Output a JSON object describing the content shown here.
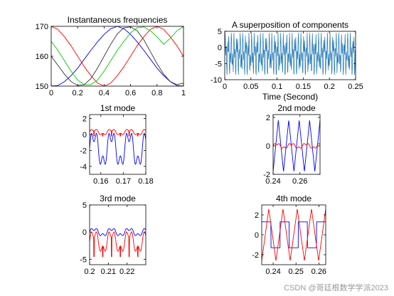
{
  "watermark": "CSDN @哥廷根数学学派2023",
  "chart_data": [
    {
      "type": "line",
      "title": "Instantaneous frequencies",
      "xlabel": "",
      "ylabel": "",
      "xlim": [
        0,
        1
      ],
      "ylim": [
        150,
        170
      ],
      "xticks": [
        0,
        0.2,
        0.4,
        0.6,
        0.8,
        1
      ],
      "xticklabels": [
        "0",
        "0.2",
        "0.4",
        "0.6",
        "0.8",
        "1"
      ],
      "yticks": [
        150,
        160,
        170
      ],
      "yticklabels": [
        "150",
        "160",
        "170"
      ],
      "series": [
        {
          "color": "#0000ff",
          "x": [
            0,
            0.05,
            0.1,
            0.15,
            0.2,
            0.25,
            0.3,
            0.35,
            0.4,
            0.45,
            0.5,
            0.55,
            0.6,
            0.65,
            0.7,
            0.75,
            0.8,
            0.85,
            0.9,
            0.95,
            1
          ],
          "y": [
            150,
            150.2,
            151.5,
            153.5,
            156,
            159,
            162,
            164.8,
            167.3,
            169.2,
            170,
            169.2,
            167.3,
            164.8,
            162,
            159,
            156,
            153.5,
            151.5,
            150.2,
            150
          ]
        },
        {
          "color": "#ff0000",
          "x": [
            0,
            0.05,
            0.1,
            0.15,
            0.2,
            0.25,
            0.3,
            0.35,
            0.4,
            0.45,
            0.5,
            0.55,
            0.6,
            0.65,
            0.7,
            0.75,
            0.8,
            0.85,
            0.9,
            0.95,
            1
          ],
          "y": [
            170,
            169,
            166.5,
            163.5,
            160,
            156.5,
            153.5,
            151,
            150,
            151,
            153.5,
            156.5,
            160,
            163.5,
            166.5,
            169,
            170,
            169,
            166.5,
            163.5,
            160
          ]
        },
        {
          "color": "#00cc00",
          "x": [
            0,
            0.05,
            0.1,
            0.15,
            0.2,
            0.25,
            0.3,
            0.35,
            0.4,
            0.45,
            0.5,
            0.55,
            0.6,
            0.65,
            0.7,
            0.75,
            0.8,
            0.85,
            0.9,
            0.95,
            1
          ],
          "y": [
            165,
            162,
            158.5,
            155,
            152,
            150.5,
            150.5,
            152,
            155,
            158.5,
            162,
            165,
            167.8,
            169.5,
            169.8,
            168.5,
            166.5,
            164,
            166,
            168.5,
            170
          ]
        },
        {
          "color": "#333333",
          "x": [
            0,
            0.05,
            0.1,
            0.15,
            0.2,
            0.25,
            0.3,
            0.35,
            0.4,
            0.45,
            0.5,
            0.55,
            0.6,
            0.65,
            0.7,
            0.75,
            0.8,
            0.85,
            0.9,
            0.95,
            1
          ],
          "y": [
            160,
            157,
            154,
            151.5,
            150.2,
            150.5,
            152.5,
            156,
            160,
            164,
            167.5,
            169.5,
            169.8,
            168.5,
            165.5,
            161.5,
            157.5,
            154,
            151.5,
            150.5,
            151
          ]
        }
      ]
    },
    {
      "type": "line",
      "title": "A superposition of components",
      "xlabel": "Time (Second)",
      "ylabel": "",
      "xlim": [
        0,
        0.25
      ],
      "ylim": [
        -10,
        5
      ],
      "xticks": [
        0,
        0.05,
        0.1,
        0.15,
        0.2,
        0.25
      ],
      "xticklabels": [
        "0",
        "0.05",
        "0.1",
        "0.15",
        "0.2",
        "0.25"
      ],
      "yticks": [
        -10,
        -5,
        0,
        5
      ],
      "yticklabels": [
        "-10",
        "-5",
        "0",
        "5"
      ],
      "series": [
        {
          "color": "#1f77b4",
          "style": "oscillation",
          "x_range": [
            0,
            0.25
          ],
          "envelope": [
            -8.5,
            4.5
          ]
        }
      ]
    },
    {
      "type": "line",
      "title": "1st mode",
      "xlabel": "",
      "ylabel": "",
      "xlim": [
        0.155,
        0.18
      ],
      "ylim": [
        -5,
        2.5
      ],
      "xticks": [
        0.16,
        0.17,
        0.18
      ],
      "xticklabels": [
        "0.16",
        "0.17",
        "0.18"
      ],
      "yticks": [
        -4,
        -2,
        0,
        2
      ],
      "yticklabels": [
        "-4",
        "-2",
        "0",
        "2"
      ],
      "series": [
        {
          "color": "#ff0000",
          "style": "oscillation",
          "range": [
            -0.2,
            0.8
          ]
        },
        {
          "color": "#0000ff",
          "style": "oscillation",
          "range": [
            -4.8,
            1.2
          ]
        }
      ]
    },
    {
      "type": "line",
      "title": "2nd mode",
      "xlabel": "",
      "ylabel": "",
      "xlim": [
        0.24,
        0.275
      ],
      "ylim": [
        -2,
        2.2
      ],
      "xticks": [
        0.24,
        0.26
      ],
      "xticklabels": [
        "0.24",
        "0.26"
      ],
      "yticks": [
        -2,
        0,
        2
      ],
      "yticklabels": [
        "-2",
        "0",
        "2"
      ],
      "series": [
        {
          "color": "#0000ff",
          "style": "triangle",
          "range": [
            -1.8,
            1.8
          ]
        },
        {
          "color": "#ff0000",
          "style": "oscillation",
          "range": [
            -0.25,
            0.25
          ]
        }
      ]
    },
    {
      "type": "line",
      "title": "3rd mode",
      "xlabel": "",
      "ylabel": "",
      "xlim": [
        0.2,
        0.23
      ],
      "ylim": [
        -6,
        5
      ],
      "xticks": [
        0.2,
        0.21,
        0.22
      ],
      "xticklabels": [
        "0.2",
        "0.21",
        "0.22"
      ],
      "yticks": [
        -5,
        0,
        5
      ],
      "yticklabels": [
        "-5",
        "0",
        "5"
      ],
      "series": [
        {
          "color": "#ff0000",
          "style": "oscillation",
          "range": [
            -4.5,
            1
          ]
        },
        {
          "color": "#0000ff",
          "style": "oscillation",
          "range": [
            -1,
            1
          ]
        }
      ]
    },
    {
      "type": "line",
      "title": "4th mode",
      "xlabel": "",
      "ylabel": "",
      "xlim": [
        0.235,
        0.263
      ],
      "ylim": [
        -3,
        3
      ],
      "xticks": [
        0.24,
        0.25,
        0.26
      ],
      "xticklabels": [
        "0.24",
        "0.25",
        "0.26"
      ],
      "yticks": [
        -2,
        0,
        2
      ],
      "yticklabels": [
        "-2",
        "0",
        "2"
      ],
      "series": [
        {
          "color": "#0000ff",
          "style": "square",
          "range": [
            -1.3,
            1.3
          ]
        },
        {
          "color": "#ff0000",
          "style": "triangle",
          "range": [
            -2.6,
            2.6
          ]
        }
      ]
    }
  ]
}
